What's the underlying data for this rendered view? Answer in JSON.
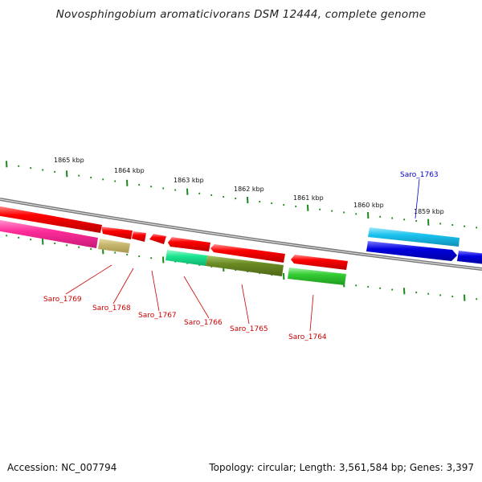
{
  "title": "Novosphingobium aromaticivorans DSM 12444, complete genome",
  "footer": {
    "accession": "Accession: NC_007794",
    "summary": "Topology: circular; Length: 3,561,584 bp; Genes: 3,397"
  },
  "scale_labels": [
    "1865 kbp",
    "1864 kbp",
    "1863 kbp",
    "1862 kbp",
    "1861 kbp",
    "1860 kbp",
    "1859 kbp"
  ],
  "gene_labels": [
    "Saro_1769",
    "Saro_1768",
    "Saro_1767",
    "Saro_1766",
    "Saro_1765",
    "Saro_1764",
    "Saro_1763"
  ],
  "colors": {
    "backbone": "#888888",
    "ticks": "#1a8a1a",
    "red_gene": "#ff0000",
    "label_red": "#cc0000",
    "label_blue": "#0000cc",
    "magenta": "#ff2d9a",
    "khaki": "#c8b870",
    "spring_green": "#19e68f",
    "olive": "#6b8a23",
    "green": "#33cc33",
    "sky_blue": "#19c2ef",
    "blue": "#0000e0"
  }
}
